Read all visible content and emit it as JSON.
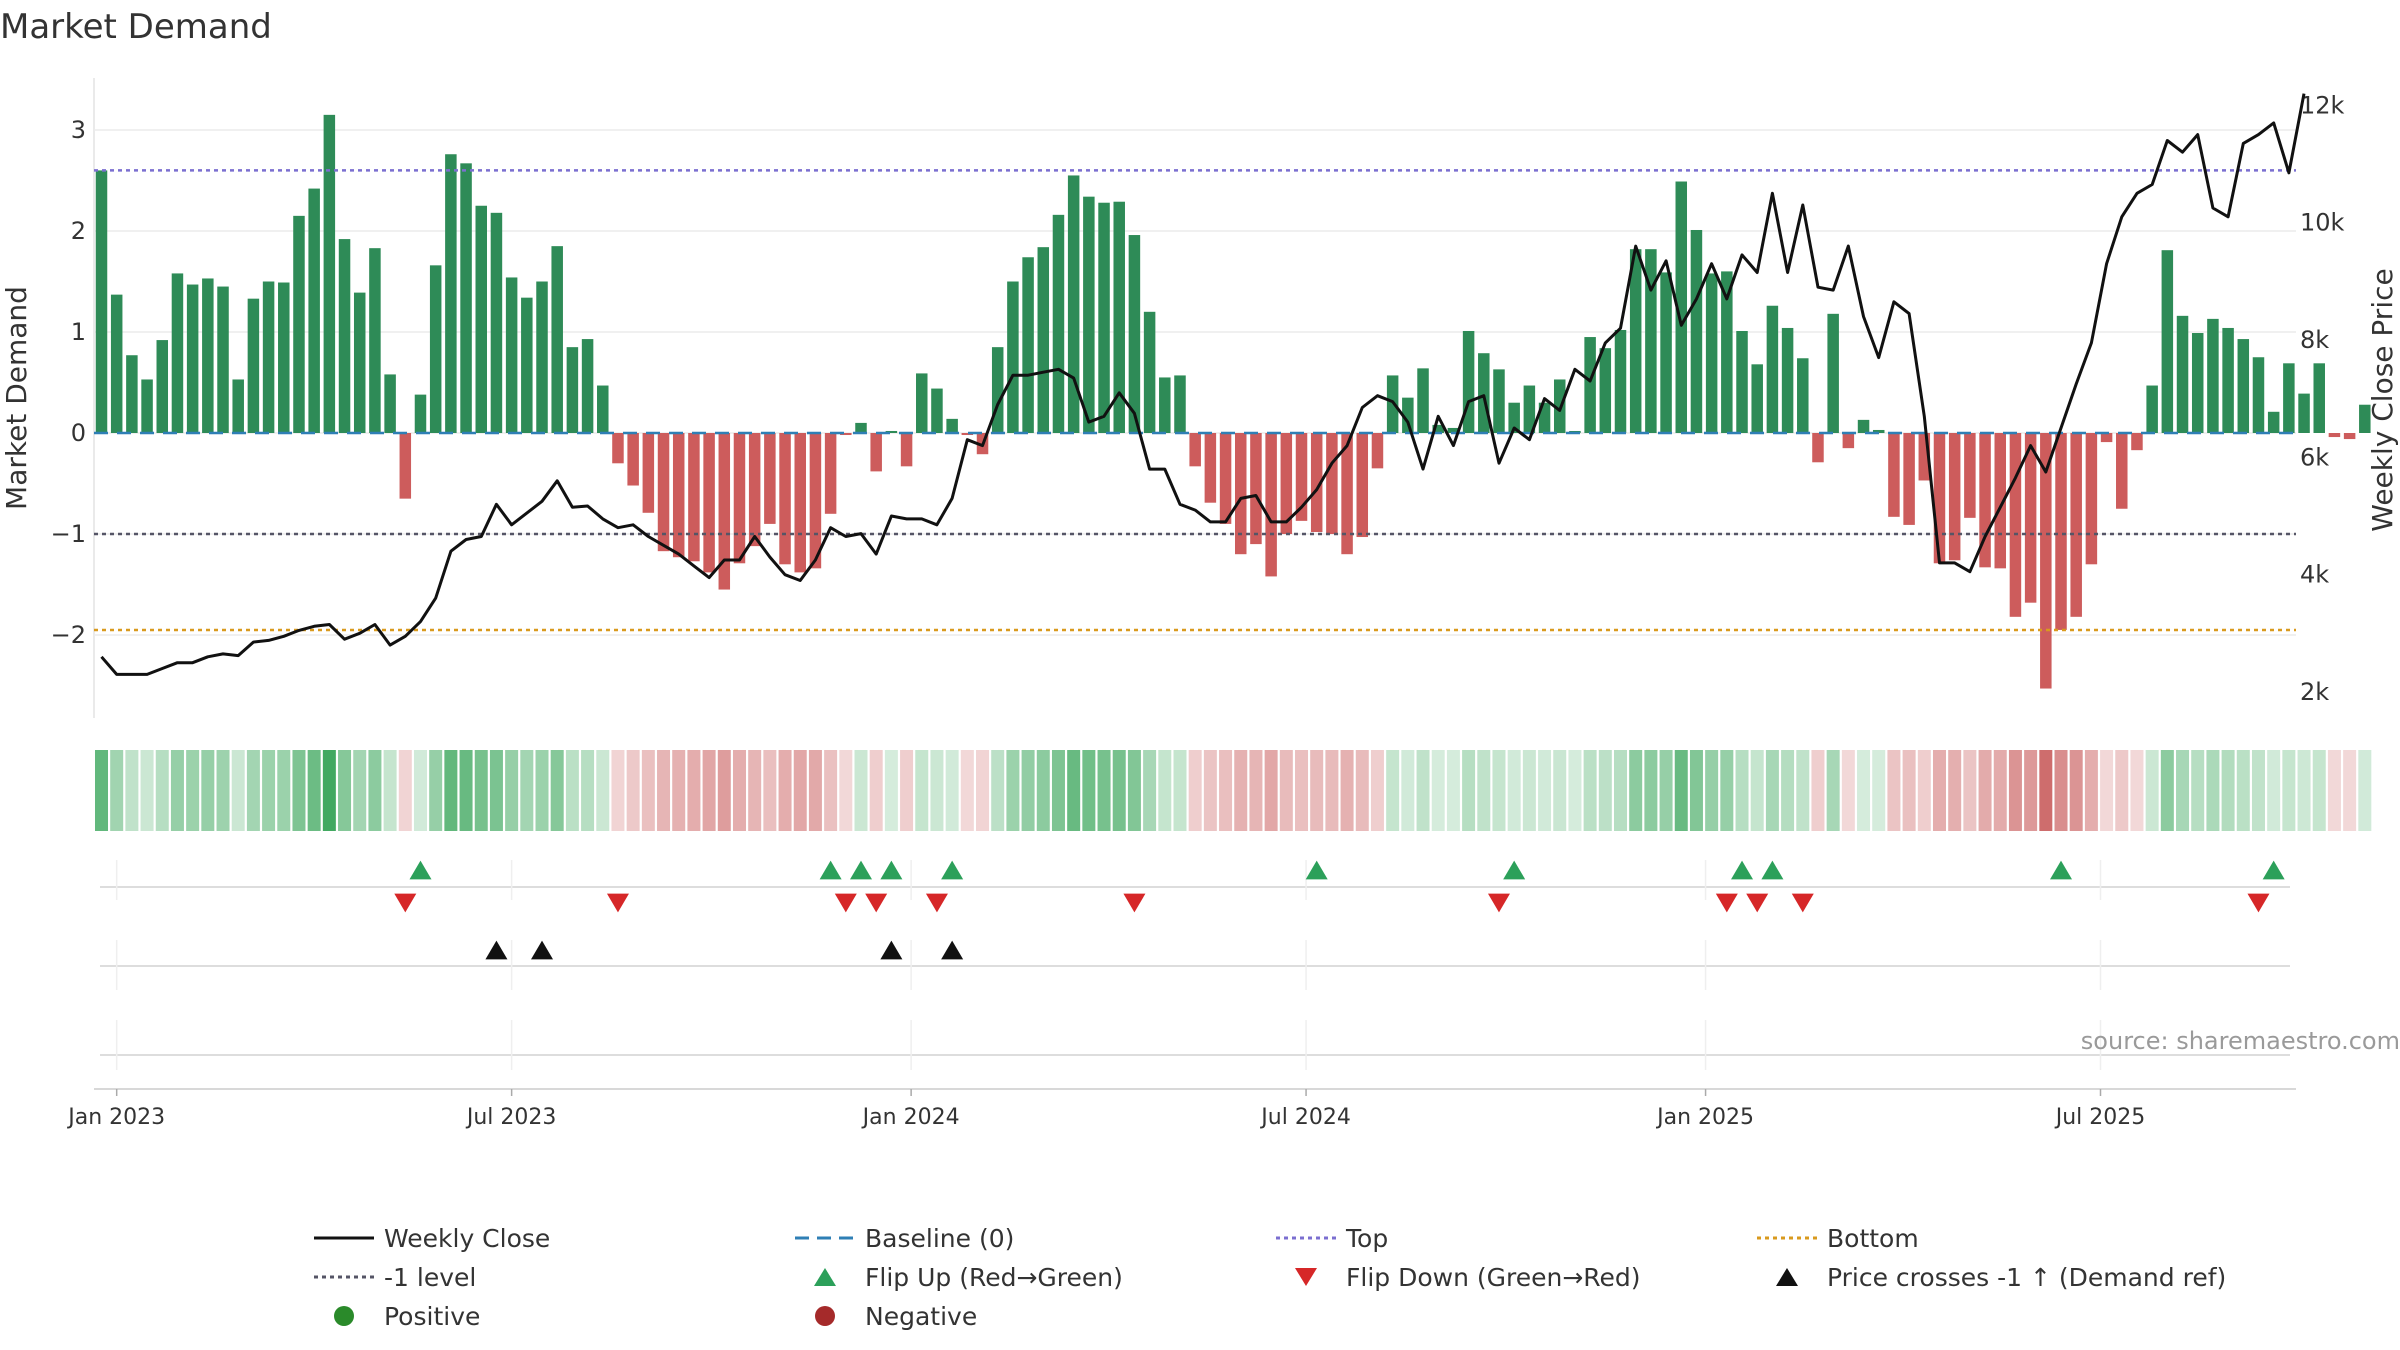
{
  "chart_data": {
    "type": "bar",
    "title": "Market Demand",
    "ylabel": "Market Demand",
    "y2label": "Weekly Close Price",
    "ylim": [
      -2.85,
      3.45
    ],
    "y2lim": [
      1400,
      12400
    ],
    "yticks": [
      "3",
      "2",
      "1",
      "0",
      "−1",
      "−2"
    ],
    "ytick_values": [
      3,
      2,
      1,
      0,
      -1,
      -2
    ],
    "y2ticks": [
      "12k",
      "10k",
      "8k",
      "6k",
      "4k",
      "2k"
    ],
    "y2tick_values": [
      12000,
      10000,
      8000,
      6000,
      4000,
      2000
    ],
    "x_start": "2022-12-25",
    "x_ticks": [
      {
        "label": "Jan 2023",
        "week": 1
      },
      {
        "label": "Jul 2023",
        "week": 27
      },
      {
        "label": "Jan 2024",
        "week": 53.3
      },
      {
        "label": "Jul 2024",
        "week": 79.3
      },
      {
        "label": "Jan 2025",
        "week": 105.6
      },
      {
        "label": "Jul 2025",
        "week": 131.6
      }
    ],
    "reference_lines": {
      "top": 2.6,
      "bottom": -1.95,
      "minus_one": -1,
      "baseline": 0
    },
    "demand": [
      2.6,
      1.37,
      0.77,
      0.53,
      0.92,
      1.58,
      1.47,
      1.53,
      1.45,
      0.53,
      1.33,
      1.5,
      1.49,
      2.15,
      2.42,
      3.15,
      1.92,
      1.39,
      1.83,
      0.58,
      -0.65,
      0.38,
      1.66,
      2.76,
      2.67,
      2.25,
      2.18,
      1.54,
      1.34,
      1.5,
      1.85,
      0.85,
      0.93,
      0.47,
      -0.3,
      -0.52,
      -0.79,
      -1.17,
      -1.23,
      -1.27,
      -1.38,
      -1.55,
      -1.29,
      -1.12,
      -0.9,
      -1.3,
      -1.38,
      -1.34,
      -0.8,
      -0.02,
      0.1,
      -0.38,
      0.02,
      -0.33,
      0.59,
      0.44,
      0.14,
      -0.02,
      -0.21,
      0.85,
      1.5,
      1.74,
      1.84,
      2.16,
      2.55,
      2.34,
      2.28,
      2.29,
      1.96,
      1.2,
      0.55,
      0.57,
      -0.33,
      -0.69,
      -0.9,
      -1.2,
      -1.1,
      -1.42,
      -1.0,
      -0.87,
      -0.98,
      -1.0,
      -1.2,
      -1.03,
      -0.35,
      0.57,
      0.35,
      0.64,
      0.08,
      0.05,
      1.01,
      0.79,
      0.63,
      0.3,
      0.47,
      0.3,
      0.53,
      0.02,
      0.95,
      0.84,
      1.02,
      1.82,
      1.82,
      1.59,
      2.49,
      2.01,
      1.58,
      1.6,
      1.01,
      0.68,
      1.26,
      1.04,
      0.74,
      -0.29,
      1.18,
      -0.15,
      0.13,
      0.03,
      -0.83,
      -0.91,
      -0.47,
      -1.29,
      -1.26,
      -0.84,
      -1.33,
      -1.34,
      -1.82,
      -1.68,
      -2.53,
      -1.95,
      -1.82,
      -1.3,
      -0.09,
      -0.75,
      -0.17,
      0.47,
      1.81,
      1.16,
      0.99,
      1.13,
      1.04,
      0.93,
      0.75,
      0.21,
      0.69,
      0.39,
      0.69,
      -0.04,
      -0.06,
      0.28
    ],
    "price": [
      2600,
      2300,
      2300,
      2300,
      2400,
      2500,
      2500,
      2600,
      2650,
      2620,
      2850,
      2880,
      2950,
      3050,
      3120,
      3150,
      2900,
      3000,
      3150,
      2800,
      2950,
      3200,
      3600,
      4400,
      4600,
      4650,
      5200,
      4850,
      5050,
      5250,
      5600,
      5150,
      5170,
      4950,
      4800,
      4850,
      4650,
      4500,
      4350,
      4150,
      3950,
      4250,
      4250,
      4650,
      4300,
      4000,
      3900,
      4250,
      4800,
      4650,
      4700,
      4350,
      5000,
      4950,
      4950,
      4850,
      5300,
      6300,
      6200,
      6900,
      7400,
      7400,
      7450,
      7500,
      7350,
      6600,
      6700,
      7100,
      6750,
      5800,
      5800,
      5200,
      5100,
      4900,
      4900,
      5300,
      5350,
      4900,
      4900,
      5150,
      5450,
      5900,
      6200,
      6850,
      7050,
      6950,
      6600,
      5800,
      6700,
      6200,
      6950,
      7050,
      5900,
      6500,
      6300,
      7000,
      6800,
      7500,
      7300,
      7950,
      8200,
      9600,
      8850,
      9350,
      8250,
      8700,
      9300,
      8700,
      9450,
      9150,
      10500,
      9150,
      10300,
      8900,
      8850,
      9600,
      8400,
      7700,
      8650,
      8450,
      6700,
      4200,
      4200,
      4050,
      4650,
      5150,
      5650,
      6200,
      5750,
      6500,
      7250,
      7950,
      9300,
      10100,
      10500,
      10650,
      11400,
      11200,
      11500,
      10250,
      10100,
      11350,
      11500,
      11700,
      10850,
      12200
    ],
    "heatmap": [
      0.75,
      0.45,
      0.3,
      0.25,
      0.35,
      0.5,
      0.48,
      0.5,
      0.47,
      0.25,
      0.44,
      0.48,
      0.48,
      0.62,
      0.7,
      0.9,
      0.58,
      0.44,
      0.55,
      0.28,
      0.22,
      0.22,
      0.5,
      0.75,
      0.72,
      0.65,
      0.63,
      0.5,
      0.44,
      0.48,
      0.58,
      0.33,
      0.35,
      0.25,
      0.22,
      0.28,
      0.32,
      0.38,
      0.4,
      0.42,
      0.46,
      0.5,
      0.42,
      0.38,
      0.33,
      0.42,
      0.45,
      0.44,
      0.32,
      0.2,
      0.25,
      0.25,
      0.2,
      0.25,
      0.28,
      0.25,
      0.22,
      0.2,
      0.22,
      0.32,
      0.48,
      0.52,
      0.55,
      0.62,
      0.72,
      0.68,
      0.65,
      0.65,
      0.6,
      0.42,
      0.28,
      0.28,
      0.25,
      0.3,
      0.33,
      0.4,
      0.38,
      0.45,
      0.35,
      0.33,
      0.35,
      0.35,
      0.4,
      0.35,
      0.25,
      0.28,
      0.22,
      0.3,
      0.2,
      0.2,
      0.35,
      0.3,
      0.28,
      0.22,
      0.25,
      0.22,
      0.26,
      0.2,
      0.33,
      0.32,
      0.35,
      0.55,
      0.55,
      0.5,
      0.72,
      0.6,
      0.5,
      0.5,
      0.35,
      0.28,
      0.42,
      0.36,
      0.3,
      0.25,
      0.42,
      0.2,
      0.2,
      0.2,
      0.3,
      0.32,
      0.25,
      0.42,
      0.41,
      0.3,
      0.43,
      0.43,
      0.55,
      0.52,
      0.75,
      0.58,
      0.55,
      0.42,
      0.2,
      0.28,
      0.2,
      0.25,
      0.55,
      0.42,
      0.35,
      0.4,
      0.37,
      0.33,
      0.3,
      0.22,
      0.28,
      0.24,
      0.28,
      0.2,
      0.2,
      0.22
    ],
    "flip_up_weeks": [
      21,
      48,
      50,
      52,
      56,
      80,
      93,
      108,
      110,
      129,
      143
    ],
    "flip_down_weeks": [
      20,
      34,
      49,
      51,
      55,
      68,
      92,
      107,
      109,
      112,
      142
    ],
    "price_cross_weeks": [
      26,
      29,
      52,
      56
    ],
    "legend": [
      {
        "label": "Weekly Close",
        "symbol": "solid-line",
        "color": "#111111"
      },
      {
        "label": "Baseline (0)",
        "symbol": "long-dash",
        "color": "#2f7fb5"
      },
      {
        "label": "Top",
        "symbol": "dotted",
        "color": "#7b6fd0"
      },
      {
        "label": "Bottom",
        "symbol": "dotted",
        "color": "#d99a1e"
      },
      {
        "label": "-1 level",
        "symbol": "dotted",
        "color": "#555566"
      },
      {
        "label": "Flip Up (Red→Green)",
        "symbol": "triangle-up",
        "color": "#2ca05a"
      },
      {
        "label": "Flip Down (Green→Red)",
        "symbol": "triangle-down",
        "color": "#d62728"
      },
      {
        "label": "Price crosses -1 ↑ (Demand ref)",
        "symbol": "triangle-up",
        "color": "#111111"
      },
      {
        "label": "Positive",
        "symbol": "circle",
        "color": "#2a8a2a"
      },
      {
        "label": "Negative",
        "symbol": "circle",
        "color": "#a52a2a"
      }
    ],
    "source": "source: sharemaestro.com"
  },
  "colors": {
    "positive_bar": "#2e8b57",
    "negative_bar": "#cd5c5c",
    "price_line": "#111111",
    "heat_green": [
      46,
      160,
      80
    ],
    "heat_red": [
      190,
      60,
      60
    ]
  }
}
